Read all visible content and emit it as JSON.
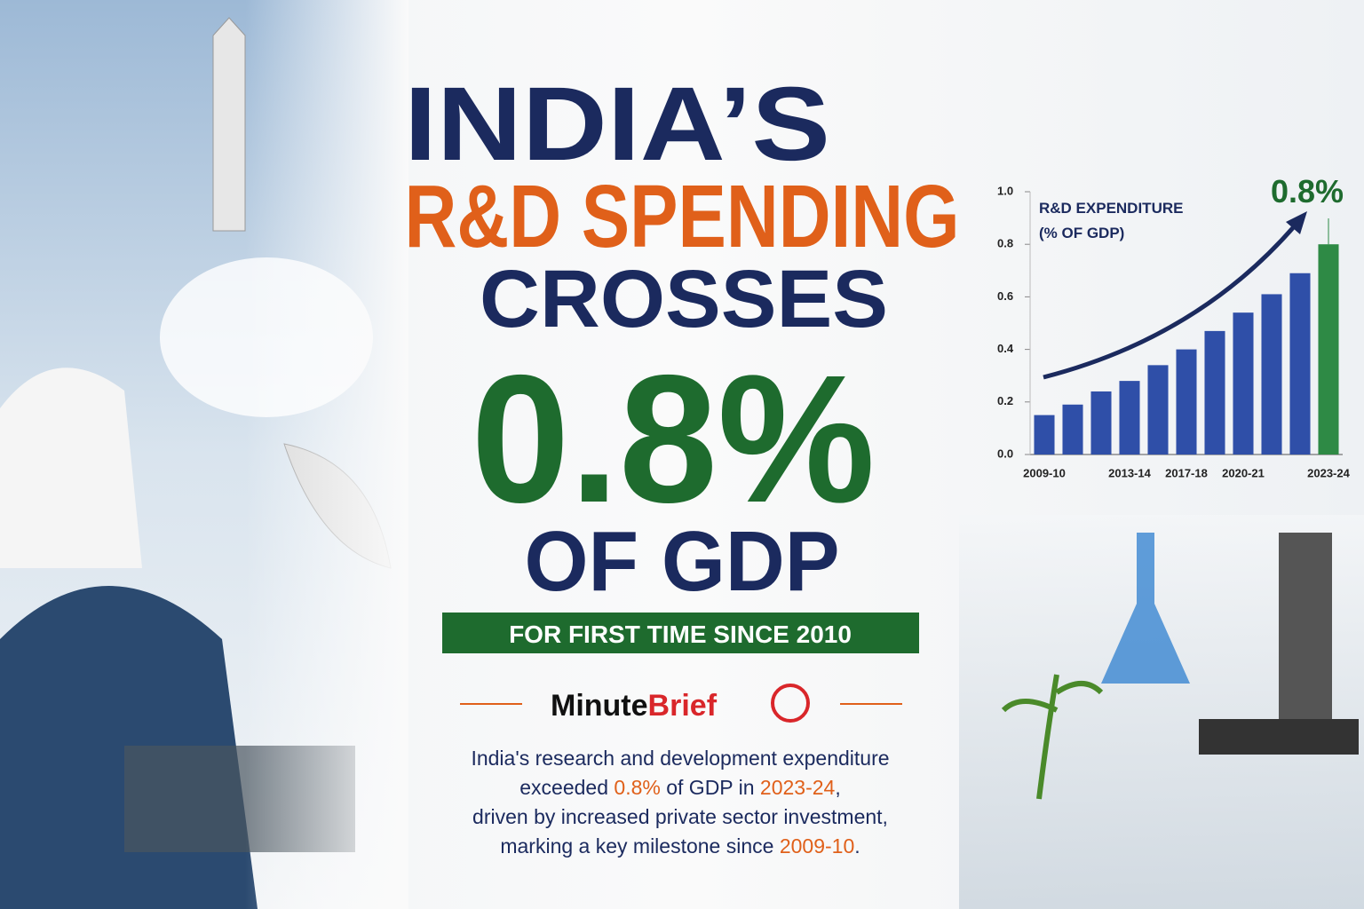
{
  "headline": {
    "line1": "INDIA’S",
    "line2": "R&D SPENDING",
    "line3": "CROSSES",
    "figure": "0.8%",
    "line4": "OF GDP"
  },
  "banner": "FOR FIRST TIME SINCE 2010",
  "brand": {
    "first": "Minute",
    "second": "Brief"
  },
  "body": [
    [
      {
        "text": "India's research and development expenditure",
        "highlight": false
      }
    ],
    [
      {
        "text": "exceeded ",
        "highlight": false
      },
      {
        "text": "0.8%",
        "highlight": true
      },
      {
        "text": " of GDP in ",
        "highlight": false
      },
      {
        "text": "2023-24",
        "highlight": true
      },
      {
        "text": ",",
        "highlight": false
      }
    ],
    [
      {
        "text": "driven by increased private sector investment,",
        "highlight": false
      }
    ],
    [
      {
        "text": "marking a key milestone since ",
        "highlight": false
      },
      {
        "text": "2009-10",
        "highlight": true
      },
      {
        "text": ".",
        "highlight": false
      }
    ]
  ],
  "chart_data": {
    "type": "bar",
    "title": "R&D EXPENDITURE",
    "subtitle": "(% OF GDP)",
    "categories": [
      "2009-10",
      null,
      null,
      "2013-14",
      null,
      "2017-18",
      null,
      "2020-21",
      null,
      null,
      "2023-24"
    ],
    "values": [
      0.15,
      0.19,
      0.24,
      0.28,
      0.34,
      0.4,
      0.47,
      0.54,
      0.61,
      0.69,
      0.8
    ],
    "value_labels": [
      null,
      null,
      null,
      null,
      null,
      null,
      null,
      null,
      null,
      null,
      "0.8%"
    ],
    "colors": [
      "#2f4fa8",
      "#2f4fa8",
      "#2f4fa8",
      "#2f4fa8",
      "#2f4fa8",
      "#2f4fa8",
      "#2f4fa8",
      "#2f4fa8",
      "#2f4fa8",
      "#2f4fa8",
      "#2e8a45"
    ],
    "ylim": [
      0,
      1
    ],
    "yticks": [
      {
        "value": 0,
        "label": "0.0"
      },
      0.2,
      0.4,
      0.6,
      0.8,
      {
        "value": 1,
        "label": "1.0"
      }
    ]
  }
}
